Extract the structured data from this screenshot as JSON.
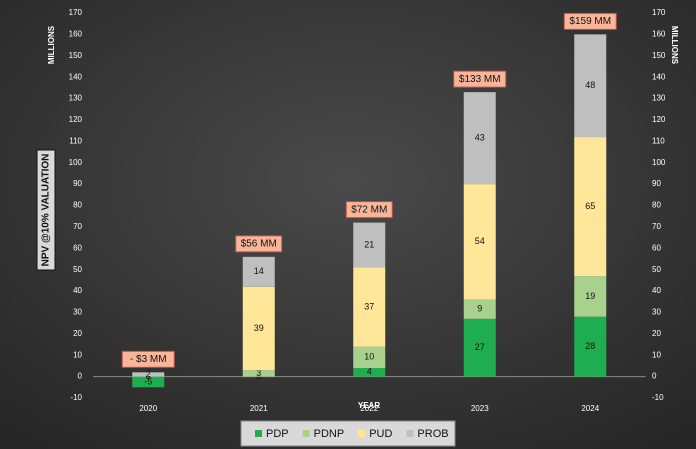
{
  "chart_data": {
    "type": "stacked_bar",
    "y_label": "NPV  @10% VALUATION",
    "x_label": "YEAR",
    "y_unit_label": "MILLIONS",
    "y2_unit_label": "MILLIONS",
    "categories": [
      "2020",
      "2021",
      "2022",
      "2023",
      "2024"
    ],
    "series": [
      {
        "name": "PDP",
        "color": "#1fae4f",
        "values": [
          -5,
          0,
          4,
          27,
          28
        ]
      },
      {
        "name": "PDNP",
        "color": "#a9d18e",
        "values": [
          0,
          3,
          10,
          9,
          19
        ]
      },
      {
        "name": "PUD",
        "color": "#ffe699",
        "values": [
          0,
          39,
          37,
          54,
          65
        ]
      },
      {
        "name": "PROB",
        "color": "#bfbfbf",
        "values": [
          2,
          14,
          21,
          43,
          48
        ]
      }
    ],
    "annotations": [
      "- $3 MM",
      "$56 MM",
      "$72 MM",
      "$133 MM",
      "$159 MM"
    ],
    "ylim": [
      -10,
      170
    ],
    "yticks": [
      -10,
      0,
      10,
      20,
      30,
      40,
      50,
      60,
      70,
      80,
      90,
      100,
      110,
      120,
      130,
      140,
      150,
      160,
      170
    ],
    "y2lim": [
      -10,
      170
    ],
    "y2ticks": [
      -10,
      0,
      10,
      20,
      30,
      40,
      50,
      60,
      70,
      80,
      90,
      100,
      110,
      120,
      130,
      140,
      150,
      160,
      170
    ],
    "legend": "bottom"
  }
}
